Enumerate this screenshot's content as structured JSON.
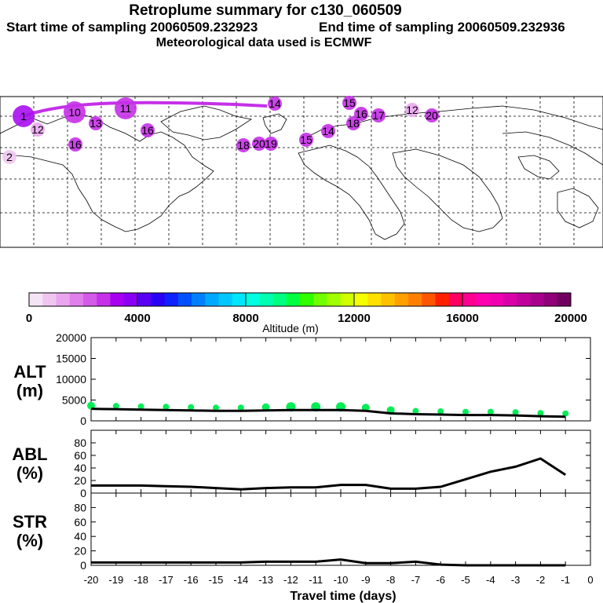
{
  "header": {
    "title": "Retroplume summary for c130_060509",
    "start_label": "Start time of sampling 20060509.232923",
    "end_label": "End time of sampling 20060509.232936",
    "met_label": "Meteorological data used is ECMWF"
  },
  "colorbar": {
    "ticks": [
      "0",
      "4000",
      "8000",
      "12000",
      "16000",
      "20000"
    ],
    "label": "Altitude (m)",
    "colors": [
      "#f5e4f5",
      "#f0c6f0",
      "#e9a6ee",
      "#e080ec",
      "#d45ae8",
      "#c530e8",
      "#a800f0",
      "#8a00f5",
      "#5a00f5",
      "#2800f5",
      "#1020ff",
      "#0050ff",
      "#0080ff",
      "#00a8ff",
      "#00c8ff",
      "#00e6ff",
      "#00ffe0",
      "#00ffb0",
      "#00ff80",
      "#00ff40",
      "#30ff00",
      "#70ff00",
      "#a0ff00",
      "#d0ff00",
      "#f5ff00",
      "#ffe000",
      "#ffc000",
      "#ffa000",
      "#ff8000",
      "#ff5500",
      "#ff2000",
      "#ff0060",
      "#ff0090",
      "#ff00b0",
      "#f000b0",
      "#d800a8",
      "#c0009c",
      "#a8008c",
      "#900078",
      "#700060"
    ]
  },
  "map": {
    "plume_labels": [
      {
        "label": "1",
        "color": "#a810f0"
      },
      {
        "label": "2",
        "color": "#f0c6f0"
      },
      {
        "label": "10",
        "color": "#c530e8"
      },
      {
        "label": "11",
        "color": "#c530e8"
      },
      {
        "label": "12",
        "color": "#e9a6ee"
      },
      {
        "label": "13",
        "color": "#c530e8"
      },
      {
        "label": "14",
        "color": "#c530e8"
      },
      {
        "label": "15",
        "color": "#c530e8"
      },
      {
        "label": "16",
        "color": "#c530e8"
      },
      {
        "label": "17",
        "color": "#c530e8"
      },
      {
        "label": "18",
        "color": "#c530e8"
      },
      {
        "label": "19",
        "color": "#c530e8"
      },
      {
        "label": "20",
        "color": "#c530e8"
      }
    ]
  },
  "chart_data": [
    {
      "type": "line",
      "panel": "altitude",
      "title": "ALT",
      "ylabel_line1": "ALT",
      "ylabel_line2": "(m)",
      "ylim": [
        0,
        20000
      ],
      "yticks": [
        "0",
        "5000",
        "10000",
        "15000",
        "20000"
      ],
      "x": [
        -20,
        -19,
        -18,
        -17,
        -16,
        -15,
        -14,
        -13,
        -12,
        -11,
        -10,
        -9,
        -8,
        -7,
        -6,
        -5,
        -4,
        -3,
        -2,
        -1
      ],
      "values": [
        2900,
        2800,
        2700,
        2600,
        2500,
        2400,
        2400,
        2500,
        2600,
        2600,
        2600,
        2400,
        1800,
        1600,
        1500,
        1400,
        1400,
        1300,
        1100,
        1000
      ],
      "scatter_color": "#00ee55",
      "scatter_sizes": [
        5,
        4,
        4,
        4,
        4,
        4,
        4,
        5,
        6,
        6,
        6,
        5,
        5,
        4,
        4,
        4,
        4,
        4,
        4,
        4
      ]
    },
    {
      "type": "line",
      "panel": "abl",
      "title": "ABL",
      "ylabel_line1": "ABL",
      "ylabel_line2": "(%)",
      "ylim": [
        0,
        100
      ],
      "yticks": [
        "0",
        "20",
        "40",
        "60",
        "80"
      ],
      "x": [
        -20,
        -19,
        -18,
        -17,
        -16,
        -15,
        -14,
        -13,
        -12,
        -11,
        -10,
        -9,
        -8,
        -7,
        -6,
        -5,
        -4,
        -3,
        -2,
        -1
      ],
      "values": [
        12,
        12,
        12,
        11,
        10,
        8,
        6,
        8,
        9,
        9,
        13,
        13,
        7,
        7,
        10,
        22,
        34,
        42,
        55,
        29
      ]
    },
    {
      "type": "line",
      "panel": "str",
      "title": "STR",
      "ylabel_line1": "STR",
      "ylabel_line2": "(%)",
      "ylim": [
        0,
        100
      ],
      "yticks": [
        "0",
        "20",
        "40",
        "60",
        "80"
      ],
      "x": [
        -20,
        -19,
        -18,
        -17,
        -16,
        -15,
        -14,
        -13,
        -12,
        -11,
        -10,
        -9,
        -8,
        -7,
        -6,
        -5,
        -4,
        -3,
        -2,
        -1
      ],
      "values": [
        4,
        4,
        4,
        4,
        4,
        4,
        4,
        5,
        5,
        5,
        8,
        3,
        3,
        5,
        1,
        0,
        0,
        0,
        0,
        0
      ],
      "xlabel": "Travel time (days)",
      "xticks": [
        "-20",
        "-19",
        "-18",
        "-17",
        "-16",
        "-15",
        "-14",
        "-13",
        "-12",
        "-11",
        "-10",
        "-9",
        "-8",
        "-7",
        "-6",
        "-5",
        "-4",
        "-3",
        "-2",
        "-1",
        "0"
      ]
    }
  ]
}
